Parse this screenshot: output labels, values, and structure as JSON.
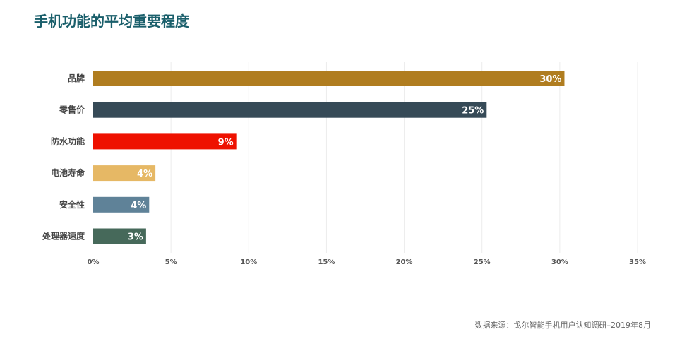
{
  "title": "手机功能的平均重要程度",
  "source": "数据来源：戈尔智能手机用户认知调研–2019年8月",
  "colors": {
    "title": "#1a5f6b",
    "grid": "#ececec",
    "bar_label": "#ffffff"
  },
  "chart_data": {
    "type": "bar",
    "orientation": "horizontal",
    "categories": [
      "品牌",
      "零售价",
      "防水功能",
      "电池寿命",
      "安全性",
      "处理器速度"
    ],
    "values": [
      30.3,
      25.3,
      9.2,
      4.0,
      3.6,
      3.4
    ],
    "data_labels": [
      "30%",
      "25%",
      "9%",
      "4%",
      "4%",
      "3%"
    ],
    "bar_colors": [
      "#b07d20",
      "#364a57",
      "#ee1100",
      "#e6b865",
      "#5f8298",
      "#46695a"
    ],
    "xlim": [
      0,
      35
    ],
    "x_ticks": [
      0,
      5,
      10,
      15,
      20,
      25,
      30,
      35
    ],
    "x_tick_labels": [
      "0%",
      "5%",
      "10%",
      "15%",
      "20%",
      "25%",
      "30%",
      "35%"
    ],
    "xlabel": "",
    "ylabel": "",
    "grid": true,
    "legend": "none"
  }
}
